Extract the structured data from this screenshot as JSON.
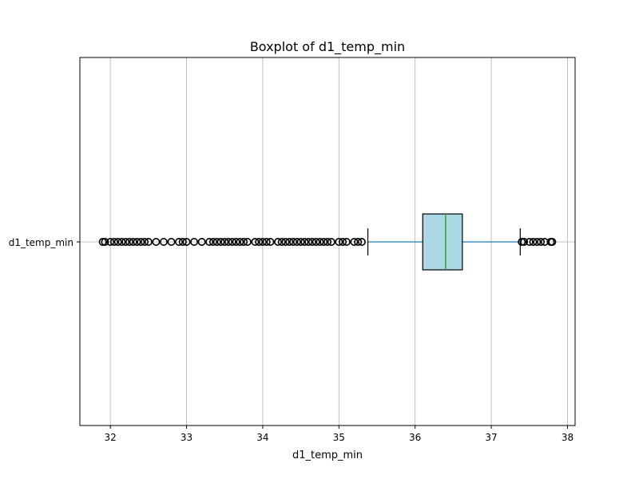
{
  "chart_data": {
    "type": "boxplot",
    "orientation": "horizontal",
    "title": "Boxplot of d1_temp_min",
    "xlabel": "d1_temp_min",
    "ylabel": "",
    "category_label": "d1_temp_min",
    "xlim": [
      31.6,
      38.1
    ],
    "x_ticks": [
      32,
      33,
      34,
      35,
      36,
      37,
      38
    ],
    "grid": true,
    "stats": {
      "whisker_low": 35.38,
      "q1": 36.1,
      "median": 36.4,
      "q3": 36.62,
      "whisker_high": 37.38
    },
    "outliers_low": [
      31.9,
      31.93,
      32.0,
      32.05,
      32.1,
      32.15,
      32.2,
      32.25,
      32.3,
      32.35,
      32.4,
      32.45,
      32.5,
      32.6,
      32.7,
      32.8,
      32.9,
      32.95,
      33.0,
      33.1,
      33.2,
      33.3,
      33.35,
      33.4,
      33.45,
      33.5,
      33.55,
      33.6,
      33.65,
      33.7,
      33.75,
      33.8,
      33.9,
      33.95,
      34.0,
      34.05,
      34.1,
      34.2,
      34.25,
      34.3,
      34.35,
      34.4,
      34.45,
      34.5,
      34.55,
      34.6,
      34.65,
      34.7,
      34.75,
      34.8,
      34.85,
      34.9,
      35.0,
      35.05,
      35.1,
      35.2,
      35.25,
      35.3
    ],
    "outliers_high": [
      37.4,
      37.43,
      37.5,
      37.55,
      37.6,
      37.65,
      37.7,
      37.78,
      37.8
    ],
    "colors": {
      "box_fill": "#add8e6",
      "whisker": "#1f77b4",
      "median": "#2ca02c",
      "outline": "#000000",
      "grid": "#b0b0b0"
    }
  }
}
